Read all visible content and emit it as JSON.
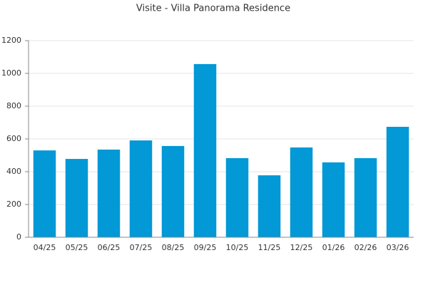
{
  "chart_data": {
    "type": "bar",
    "title": "Visite - Villa Panorama Residence",
    "categories": [
      "04/25",
      "05/25",
      "06/25",
      "07/25",
      "08/25",
      "09/25",
      "10/25",
      "11/25",
      "12/25",
      "01/26",
      "02/26",
      "03/26"
    ],
    "values": [
      530,
      478,
      535,
      591,
      557,
      1057,
      483,
      378,
      548,
      457,
      483,
      674
    ],
    "color": "#0398d6",
    "ylim": [
      0,
      1200
    ],
    "yticks": [
      0,
      200,
      400,
      600,
      800,
      1000,
      1200
    ],
    "grid": true
  }
}
